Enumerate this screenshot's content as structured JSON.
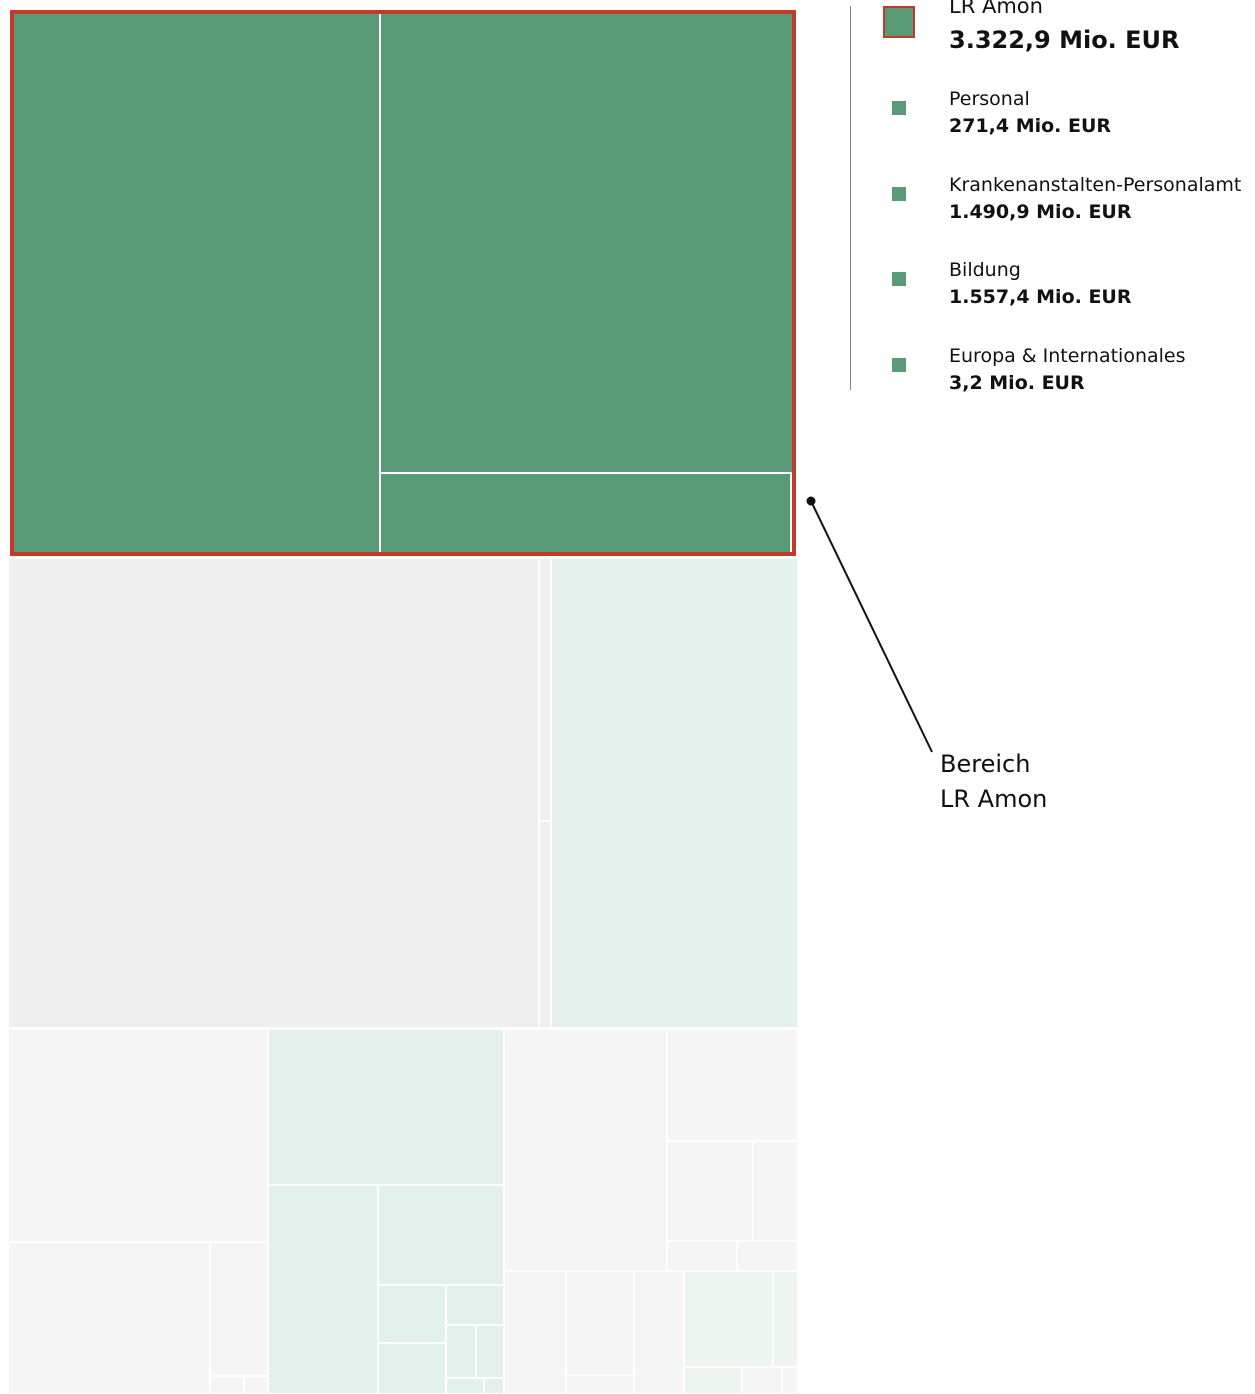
{
  "chart_data": {
    "type": "treemap",
    "selected_group": {
      "name": "LR Amon",
      "value": 3322.9,
      "value_label": "3.322,9 Mio. EUR",
      "children": [
        {
          "name": "Personal",
          "value": 271.4,
          "value_label": "271,4 Mio. EUR"
        },
        {
          "name": "Krankenanstalten-Personalamt",
          "value": 1490.9,
          "value_label": "1.490,9 Mio. EUR"
        },
        {
          "name": "Bildung",
          "value": 1557.4,
          "value_label": "1.557,4 Mio. EUR"
        },
        {
          "name": "Europa & Internationales",
          "value": 3.2,
          "value_label": "3,2 Mio. EUR"
        }
      ]
    },
    "callout": {
      "line1": "Bereich",
      "line2": "LR Amon"
    },
    "colors": {
      "selected": "#5a9b77",
      "highlight_border": "#c33a2a",
      "other_green": "#e4f0eb",
      "other_gray": "#efefef",
      "other_light": "#f5f5f5",
      "other_mint": "#eef5f1"
    }
  }
}
